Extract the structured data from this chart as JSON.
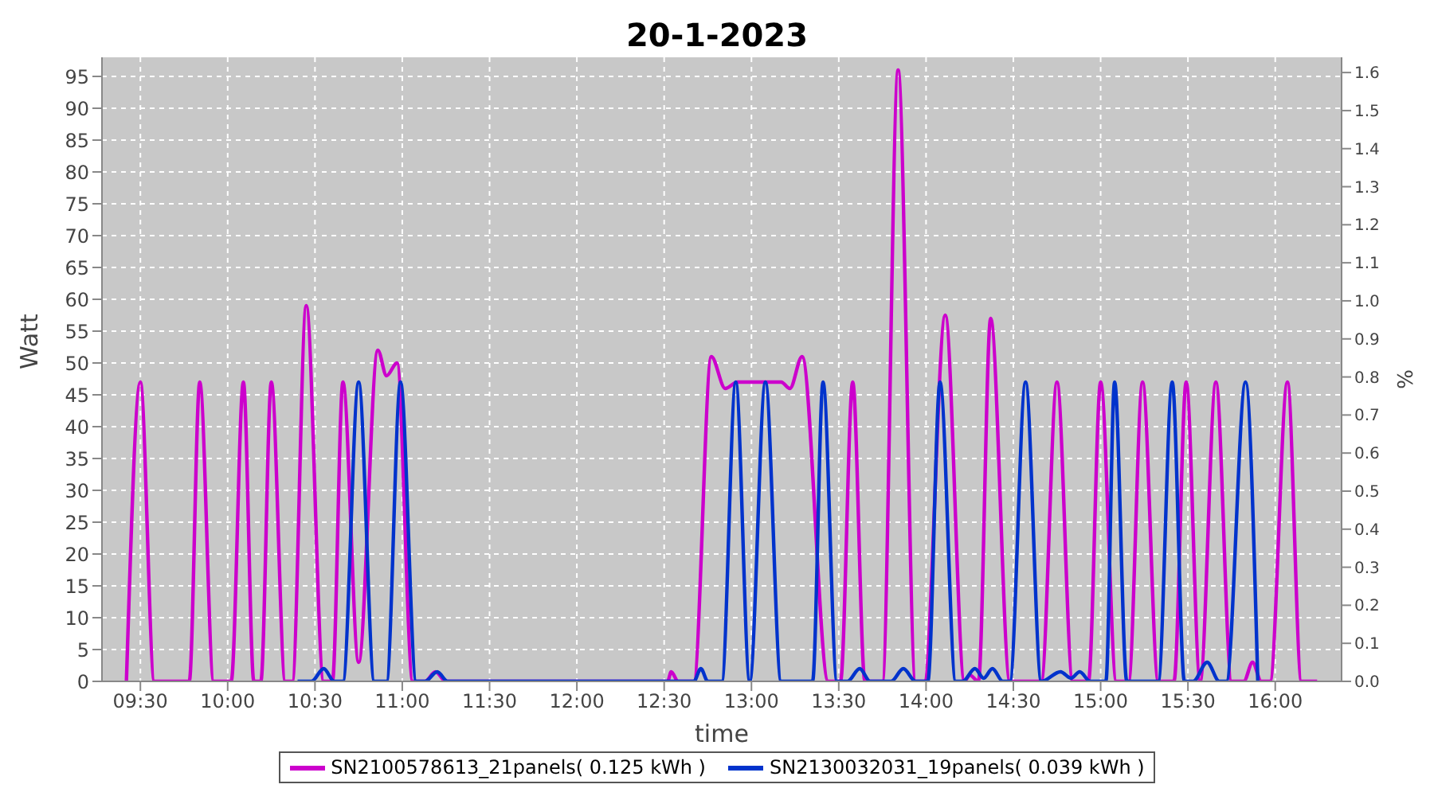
{
  "chart_data": {
    "type": "line",
    "title": "20-1-2023",
    "xlabel": "time",
    "ylabel": "Watt",
    "y2label": "%",
    "xlim": [
      9.28,
      16.38
    ],
    "xticks": [
      {
        "value": 9.5,
        "label": "09:30"
      },
      {
        "value": 10,
        "label": "10:00"
      },
      {
        "value": 10.5,
        "label": "10:30"
      },
      {
        "value": 11,
        "label": "11:00"
      },
      {
        "value": 11.5,
        "label": "11:30"
      },
      {
        "value": 12,
        "label": "12:00"
      },
      {
        "value": 12.5,
        "label": "12:30"
      },
      {
        "value": 13,
        "label": "13:00"
      },
      {
        "value": 13.5,
        "label": "13:30"
      },
      {
        "value": 14,
        "label": "14:00"
      },
      {
        "value": 14.5,
        "label": "14:30"
      },
      {
        "value": 15,
        "label": "15:00"
      },
      {
        "value": 15.5,
        "label": "15:30"
      },
      {
        "value": 16,
        "label": "16:00"
      }
    ],
    "ylim": [
      0,
      98
    ],
    "yticks": [
      0,
      5,
      10,
      15,
      20,
      25,
      30,
      35,
      40,
      45,
      50,
      55,
      60,
      65,
      70,
      75,
      80,
      85,
      90,
      95
    ],
    "y2lim": [
      0,
      1.64
    ],
    "y2ticks": [
      {
        "value": 0,
        "label": "0.0"
      },
      0.1,
      0.2,
      0.3,
      0.4,
      0.5,
      0.6,
      0.7,
      0.8,
      0.9,
      {
        "value": 1,
        "label": "1.0"
      },
      1.1,
      1.2,
      1.3,
      1.4,
      1.5,
      1.6
    ],
    "grid": true,
    "legend": "bottom",
    "series": [
      {
        "name": "SN2100578613_21panels( 0.125 kWh )",
        "color": "#cc00cc",
        "x": [
          9.42,
          9.5,
          9.58,
          9.78,
          9.84,
          9.92,
          10.02,
          10.09,
          10.15,
          10.19,
          10.25,
          10.33,
          10.37,
          10.45,
          10.55,
          10.6,
          10.66,
          10.75,
          10.86,
          10.91,
          10.97,
          11.06,
          11.13,
          11.19,
          11.25,
          12.52,
          12.54,
          12.58,
          12.67,
          12.77,
          12.85,
          12.92,
          13.17,
          13.22,
          13.29,
          13.44,
          13.51,
          13.58,
          13.65,
          13.75,
          13.84,
          13.94,
          13.99,
          14.11,
          14.22,
          14.25,
          14.3,
          14.37,
          14.48,
          14.66,
          14.75,
          14.84,
          14.93,
          15.0,
          15.09,
          15.16,
          15.24,
          15.33,
          15.42,
          15.49,
          15.57,
          15.66,
          15.75,
          15.82,
          15.87,
          15.92,
          15.97,
          16.07,
          16.15,
          16.24
        ],
        "values": [
          0,
          47,
          0,
          0,
          47,
          0,
          0,
          47,
          0,
          0,
          47,
          0,
          0,
          59,
          0,
          0,
          47,
          3,
          52,
          48,
          50,
          0,
          0,
          1.5,
          0,
          0,
          1.5,
          0,
          0,
          51,
          46,
          47,
          47,
          46,
          51,
          0,
          0,
          47,
          0,
          0,
          96,
          0,
          0,
          57.5,
          0,
          1,
          0,
          57,
          0,
          0,
          47,
          0,
          0,
          47,
          0,
          0,
          47,
          0,
          0,
          47,
          0,
          47,
          0,
          0,
          3,
          0,
          0,
          47,
          0,
          0
        ]
      },
      {
        "name": "SN2130032031_19panels( 0.039 kWh )",
        "color": "#0033cc",
        "x": [
          10.4,
          10.48,
          10.55,
          10.61,
          10.66,
          10.75,
          10.84,
          10.91,
          10.99,
          11.08,
          11.13,
          11.2,
          11.26,
          12.67,
          12.71,
          12.75,
          12.83,
          12.91,
          12.99,
          13.08,
          13.17,
          13.35,
          13.41,
          13.49,
          13.55,
          13.62,
          13.68,
          13.8,
          13.87,
          13.94,
          14.01,
          14.08,
          14.17,
          14.21,
          14.28,
          14.33,
          14.38,
          14.44,
          14.48,
          14.57,
          14.66,
          14.77,
          14.83,
          14.88,
          14.94,
          15.03,
          15.08,
          15.15,
          15.33,
          15.41,
          15.48,
          15.53,
          15.61,
          15.68,
          15.72,
          15.83,
          15.9
        ],
        "values": [
          0,
          0,
          2,
          0,
          0,
          47,
          0,
          0,
          47,
          0,
          0,
          1.5,
          0,
          0,
          2,
          0,
          0,
          47,
          0,
          47,
          0,
          0,
          47,
          0,
          0,
          2,
          0,
          0,
          2,
          0,
          0,
          47,
          0,
          0,
          2,
          0.5,
          2,
          0,
          0,
          47,
          0,
          1.5,
          0.5,
          1.5,
          0,
          0,
          47,
          0,
          0,
          47,
          0,
          0,
          3,
          0,
          0,
          47,
          0
        ]
      }
    ]
  }
}
